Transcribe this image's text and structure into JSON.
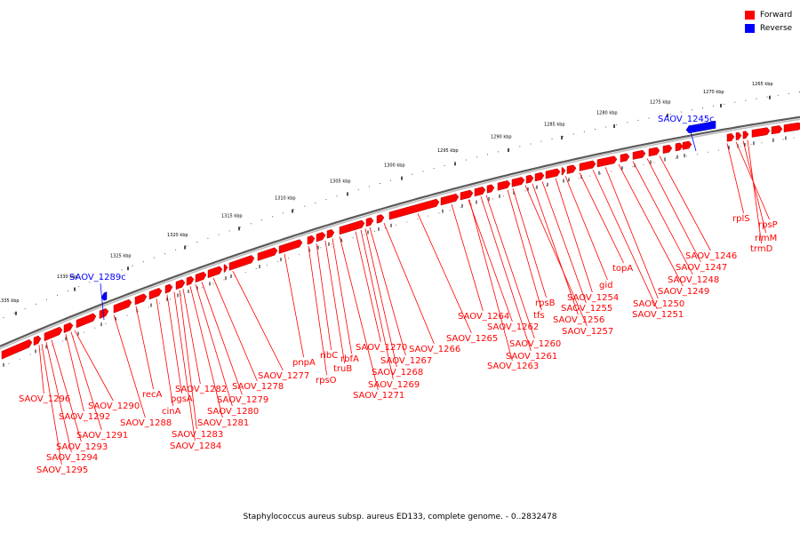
{
  "legend": {
    "forward_label": "Forward",
    "reverse_label": "Reverse",
    "forward_color": "#ff0000",
    "reverse_color": "#0000ff"
  },
  "caption": "Staphylococcus aureus subsp. aureus ED133, complete genome. - 0..2832478",
  "colors": {
    "forward": "#ff0000",
    "reverse": "#0000ff",
    "backbone": "#888888",
    "label_forward": "#ff0000",
    "label_reverse": "#0000ff"
  },
  "scale_ticks": [
    "1335 kbp",
    "1330 kbp",
    "1325 kbp",
    "1320 kbp",
    "1315 kbp",
    "1310 kbp",
    "1305 kbp",
    "1300 kbp",
    "1295 kbp",
    "1290 kbp",
    "1285 kbp",
    "1280 kbp",
    "1275 kbp",
    "1270 kbp",
    "1265 kbp"
  ],
  "reverse_genes": [
    "SAOV_1289c",
    "SAOV_1245c"
  ],
  "forward_labels": [
    "SAOV_1296",
    "SAOV_1295",
    "SAOV_1294",
    "SAOV_1293",
    "SAOV_1292",
    "SAOV_1291",
    "SAOV_1290",
    "SAOV_1288",
    "recA",
    "cinA",
    "pgsA",
    "SAOV_1284",
    "SAOV_1283",
    "SAOV_1282",
    "SAOV_1281",
    "SAOV_1280",
    "SAOV_1279",
    "SAOV_1278",
    "SAOV_1277",
    "pnpA",
    "rpsO",
    "ribC",
    "truB",
    "rbfA",
    "SAOV_1271",
    "SAOV_1270",
    "SAOV_1269",
    "SAOV_1268",
    "SAOV_1267",
    "SAOV_1266",
    "SAOV_1265",
    "SAOV_1264",
    "SAOV_1263",
    "SAOV_1262",
    "SAOV_1261",
    "SAOV_1260",
    "tfs",
    "rpsB",
    "SAOV_1257",
    "SAOV_1256",
    "SAOV_1255",
    "SAOV_1254",
    "gid",
    "topA",
    "SAOV_1251",
    "SAOV_1250",
    "SAOV_1249",
    "SAOV_1248",
    "SAOV_1247",
    "SAOV_1246",
    "rplS",
    "rpsP",
    "rimM",
    "trmD"
  ]
}
